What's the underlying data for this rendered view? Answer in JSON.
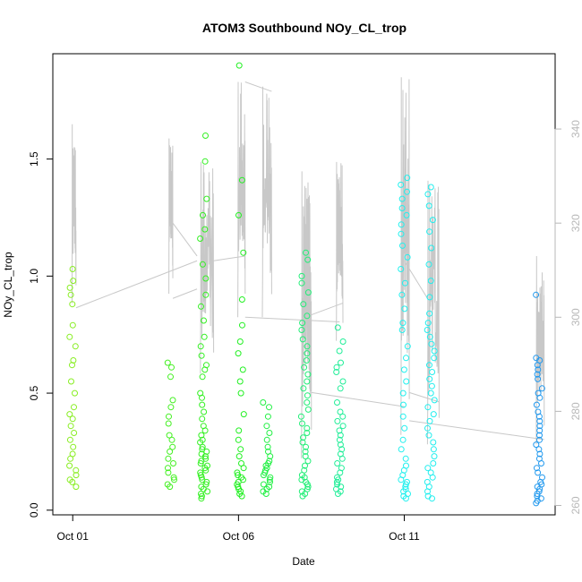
{
  "chart_data": {
    "type": "scatter",
    "title": "ATOM3 Southbound NOy_CL_trop",
    "xlabel": "Date",
    "ylabel": "NOy_CL_trop",
    "x_ticks": [
      "Oct 01",
      "Oct 06",
      "Oct 11"
    ],
    "x_tick_days": [
      1,
      6,
      11
    ],
    "xlim_days": [
      0.4,
      15.55
    ],
    "ylim": [
      -0.02,
      1.95
    ],
    "y_ticks": [
      0.0,
      0.5,
      1.0,
      1.5
    ],
    "y_tick_labels": [
      "0.0",
      "0.5",
      "1.0",
      "1.5"
    ],
    "y2lim": [
      258,
      356
    ],
    "y2_ticks": [
      260,
      280,
      300,
      320,
      340
    ],
    "y2_tick_labels": [
      "260",
      "280",
      "300",
      "320",
      "340"
    ],
    "grid": false,
    "color_note": "points colored by time (yellow-green → green → cyan → blue)",
    "series": [
      {
        "kind": "points",
        "flights": [
          {
            "day": 1.0,
            "color": "#88ee22",
            "values": [
              1.03,
              0.98,
              0.95,
              0.92,
              0.88,
              0.79,
              0.74,
              0.7,
              0.64,
              0.62,
              0.55,
              0.5,
              0.44,
              0.41,
              0.39,
              0.36,
              0.33,
              0.3,
              0.27,
              0.24,
              0.22,
              0.19,
              0.17,
              0.15,
              0.13,
              0.12,
              0.1
            ]
          },
          {
            "day": 3.95,
            "color": "#44f022",
            "values": [
              0.63,
              0.61,
              0.57,
              0.47,
              0.44,
              0.4,
              0.37,
              0.32,
              0.3,
              0.27,
              0.25,
              0.22,
              0.2,
              0.18,
              0.16,
              0.14,
              0.13,
              0.11,
              0.1
            ]
          },
          {
            "day": 4.95,
            "color": "#33f022",
            "values": [
              1.6,
              1.49,
              1.33,
              1.26,
              1.2,
              1.16,
              1.05,
              0.99,
              0.92,
              0.87,
              0.81,
              0.74,
              0.7,
              0.66,
              0.62,
              0.6,
              0.57,
              0.5,
              0.48,
              0.45,
              0.42,
              0.39,
              0.36,
              0.34,
              0.32,
              0.3,
              0.29,
              0.27,
              0.26,
              0.25,
              0.24,
              0.23,
              0.22,
              0.21,
              0.2,
              0.19,
              0.18,
              0.17,
              0.16,
              0.15,
              0.14,
              0.13,
              0.12,
              0.11,
              0.1,
              0.09,
              0.08,
              0.07,
              0.06,
              0.05
            ]
          },
          {
            "day": 6.05,
            "color": "#22f022",
            "values": [
              1.9,
              1.41,
              1.26,
              1.1,
              0.9,
              0.79,
              0.72,
              0.67,
              0.6,
              0.55,
              0.5,
              0.41,
              0.34,
              0.3,
              0.26,
              0.23,
              0.2,
              0.18,
              0.16,
              0.15,
              0.14,
              0.13,
              0.12,
              0.11,
              0.1,
              0.09,
              0.08,
              0.07,
              0.06
            ]
          },
          {
            "day": 6.85,
            "color": "#22f044",
            "values": [
              0.46,
              0.44,
              0.4,
              0.36,
              0.33,
              0.3,
              0.27,
              0.25,
              0.23,
              0.21,
              0.2,
              0.19,
              0.18,
              0.17,
              0.16,
              0.15,
              0.14,
              0.13,
              0.12,
              0.11,
              0.1,
              0.09,
              0.08,
              0.07
            ]
          },
          {
            "day": 8.0,
            "color": "#22ee77",
            "values": [
              1.1,
              1.07,
              1.0,
              0.97,
              0.93,
              0.88,
              0.83,
              0.8,
              0.77,
              0.73,
              0.7,
              0.67,
              0.64,
              0.61,
              0.58,
              0.55,
              0.52,
              0.49,
              0.46,
              0.43,
              0.4,
              0.37,
              0.35,
              0.33,
              0.31,
              0.29,
              0.27,
              0.25,
              0.23,
              0.21,
              0.19,
              0.17,
              0.15,
              0.14,
              0.13,
              0.12,
              0.11,
              0.1,
              0.09,
              0.08,
              0.07,
              0.06
            ]
          },
          {
            "day": 9.05,
            "color": "#22ee99",
            "values": [
              0.78,
              0.72,
              0.68,
              0.63,
              0.61,
              0.59,
              0.55,
              0.52,
              0.46,
              0.42,
              0.4,
              0.38,
              0.36,
              0.34,
              0.32,
              0.3,
              0.28,
              0.26,
              0.24,
              0.22,
              0.2,
              0.18,
              0.16,
              0.14,
              0.13,
              0.12,
              0.11,
              0.1,
              0.09,
              0.08,
              0.07
            ]
          },
          {
            "day": 11.0,
            "color": "#22f0ee",
            "values": [
              1.42,
              1.39,
              1.36,
              1.33,
              1.29,
              1.26,
              1.22,
              1.18,
              1.13,
              1.08,
              1.03,
              0.97,
              0.92,
              0.86,
              0.8,
              0.77,
              0.7,
              0.65,
              0.6,
              0.55,
              0.5,
              0.45,
              0.4,
              0.35,
              0.3,
              0.26,
              0.22,
              0.19,
              0.17,
              0.15,
              0.13,
              0.12,
              0.11,
              0.1,
              0.09,
              0.08,
              0.07,
              0.06,
              0.05
            ]
          },
          {
            "day": 11.8,
            "color": "#22eeee",
            "values": [
              1.38,
              1.35,
              1.3,
              1.24,
              1.19,
              1.12,
              1.05,
              0.98,
              0.91,
              0.84,
              0.8,
              0.77,
              0.74,
              0.71,
              0.68,
              0.65,
              0.62,
              0.59,
              0.56,
              0.53,
              0.5,
              0.47,
              0.44,
              0.41,
              0.38,
              0.35,
              0.32,
              0.29,
              0.26,
              0.23,
              0.2,
              0.18,
              0.16,
              0.14,
              0.12,
              0.1,
              0.08,
              0.06,
              0.05
            ]
          },
          {
            "day": 15.05,
            "color": "#2299ee",
            "values": [
              0.92,
              0.65,
              0.64,
              0.62,
              0.6,
              0.58,
              0.56,
              0.52,
              0.5,
              0.48,
              0.45,
              0.42,
              0.4,
              0.38,
              0.36,
              0.34,
              0.32,
              0.3,
              0.28,
              0.26,
              0.24,
              0.22,
              0.2,
              0.18,
              0.16,
              0.14,
              0.12,
              0.11,
              0.1,
              0.09,
              0.08,
              0.07,
              0.06,
              0.05,
              0.04,
              0.03
            ]
          }
        ]
      },
      {
        "kind": "line",
        "axis": "right",
        "color": "#c8c8c8",
        "flights": [
          {
            "day_start": 0.98,
            "day_end": 1.1,
            "low": 303,
            "high": 341
          },
          {
            "day_start": 3.9,
            "day_end": 4.02,
            "low": 305,
            "high": 338
          },
          {
            "day_start": 4.85,
            "day_end": 5.25,
            "low": 288,
            "high": 333
          },
          {
            "day_start": 5.98,
            "day_end": 6.2,
            "low": 300,
            "high": 350
          },
          {
            "day_start": 6.72,
            "day_end": 7.0,
            "low": 300,
            "high": 349
          },
          {
            "day_start": 7.9,
            "day_end": 8.2,
            "low": 270,
            "high": 331
          },
          {
            "day_start": 8.95,
            "day_end": 9.15,
            "low": 295,
            "high": 333
          },
          {
            "day_start": 10.9,
            "day_end": 11.15,
            "low": 275,
            "high": 351
          },
          {
            "day_start": 11.7,
            "day_end": 12.05,
            "low": 273,
            "high": 329
          },
          {
            "day_start": 14.98,
            "day_end": 15.22,
            "low": 273,
            "high": 313
          }
        ],
        "connectors": [
          {
            "from": [
              1.1,
              302
            ],
            "to": [
              4.75,
              312
            ]
          },
          {
            "from": [
              4.02,
              304
            ],
            "to": [
              4.75,
              306
            ]
          },
          {
            "from": [
              4.02,
              320
            ],
            "to": [
              4.75,
              313
            ]
          },
          {
            "from": [
              5.25,
              312
            ],
            "to": [
              6.2,
              313
            ]
          },
          {
            "from": [
              6.2,
              300
            ],
            "to": [
              9.05,
              299
            ]
          },
          {
            "from": [
              6.2,
              350
            ],
            "to": [
              7.0,
              348
            ]
          },
          {
            "from": [
              8.2,
              284
            ],
            "to": [
              11.0,
              281
            ]
          },
          {
            "from": [
              9.15,
              303
            ],
            "to": [
              8.0,
              300
            ]
          },
          {
            "from": [
              11.0,
              312
            ],
            "to": [
              11.7,
              304
            ]
          },
          {
            "from": [
              11.15,
              278
            ],
            "to": [
              15.22,
              274
            ]
          },
          {
            "from": [
              11.15,
              284
            ],
            "to": [
              12.05,
              282
            ]
          }
        ]
      }
    ]
  }
}
